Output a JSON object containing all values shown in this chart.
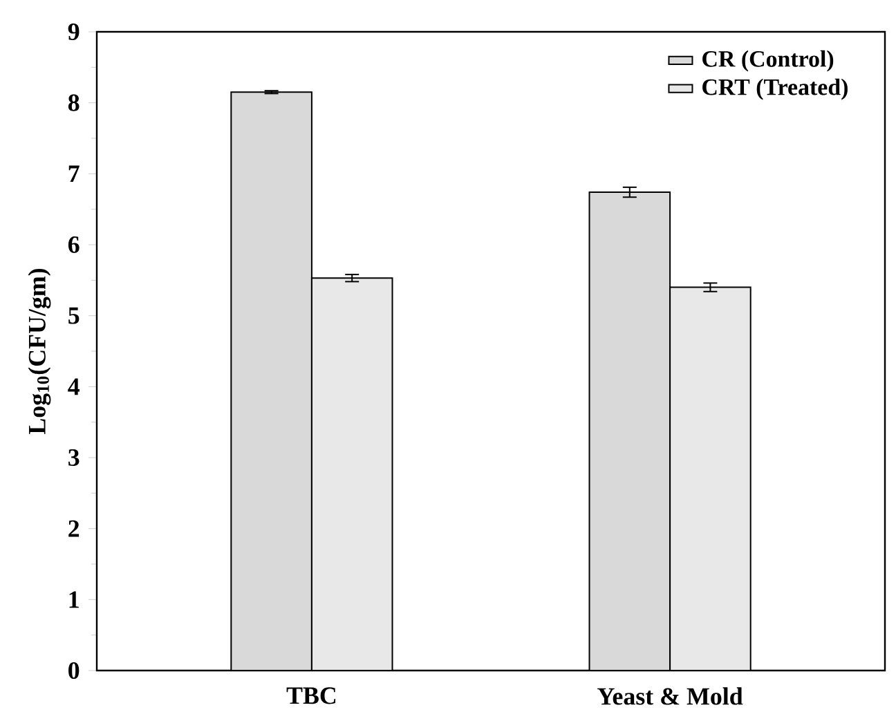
{
  "chart_data": {
    "type": "bar",
    "ylabel": "Log$_{10}$(CFU/gm)",
    "categories": [
      "TBC",
      "Yeast & Mold"
    ],
    "series": [
      {
        "name": "CR (Control)",
        "color": "#d9d9d9",
        "values": [
          8.15,
          6.74
        ],
        "errors": [
          0.02,
          0.07
        ]
      },
      {
        "name": "CRT (Treated)",
        "color": "#e8e8e8",
        "values": [
          5.53,
          5.4
        ],
        "errors": [
          0.05,
          0.06
        ]
      }
    ],
    "ylim": [
      0,
      9
    ],
    "yticks": [
      0,
      1,
      2,
      3,
      4,
      5,
      6,
      7,
      8,
      9
    ],
    "grid": false,
    "legend": "top right"
  }
}
